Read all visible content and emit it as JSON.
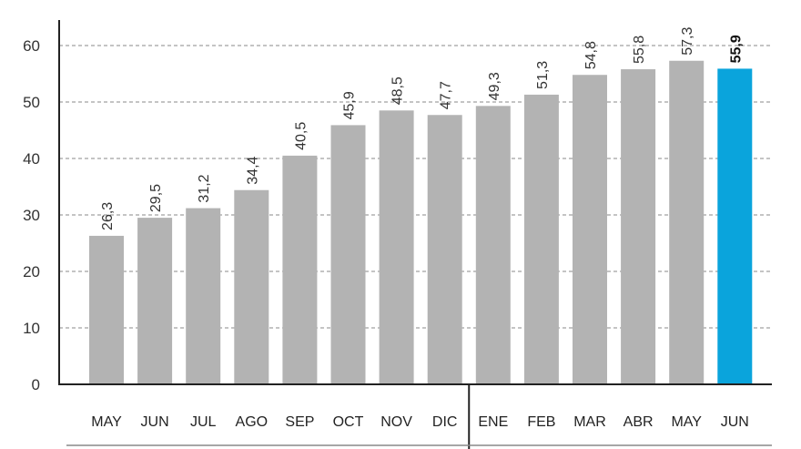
{
  "chart_data": {
    "type": "bar",
    "categories": [
      "MAY",
      "JUN",
      "JUL",
      "AGO",
      "SEP",
      "OCT",
      "NOV",
      "DIC",
      "ENE",
      "FEB",
      "MAR",
      "ABR",
      "MAY",
      "JUN"
    ],
    "values": [
      26.3,
      29.5,
      31.2,
      34.4,
      40.5,
      45.9,
      48.5,
      47.7,
      49.3,
      51.3,
      54.8,
      55.8,
      57.3,
      55.9
    ],
    "value_labels": [
      "26,3",
      "29,5",
      "31,2",
      "34,4",
      "40,5",
      "45,9",
      "48,5",
      "47,7",
      "49,3",
      "51,3",
      "54,8",
      "55,8",
      "57,3",
      "55,9"
    ],
    "title": "",
    "xlabel": "",
    "ylabel": "",
    "ylim": [
      0,
      60
    ],
    "yticks": [
      0,
      10,
      20,
      30,
      40,
      50,
      60
    ],
    "ytick_labels": [
      "0",
      "10",
      "20",
      "30",
      "40",
      "50",
      "60"
    ],
    "grid": true,
    "highlight_index": 13,
    "colors": {
      "bar": "#b3b3b3",
      "highlight": "#0aa4dc",
      "grid": "#8a8a8a",
      "axis": "#222222"
    }
  }
}
